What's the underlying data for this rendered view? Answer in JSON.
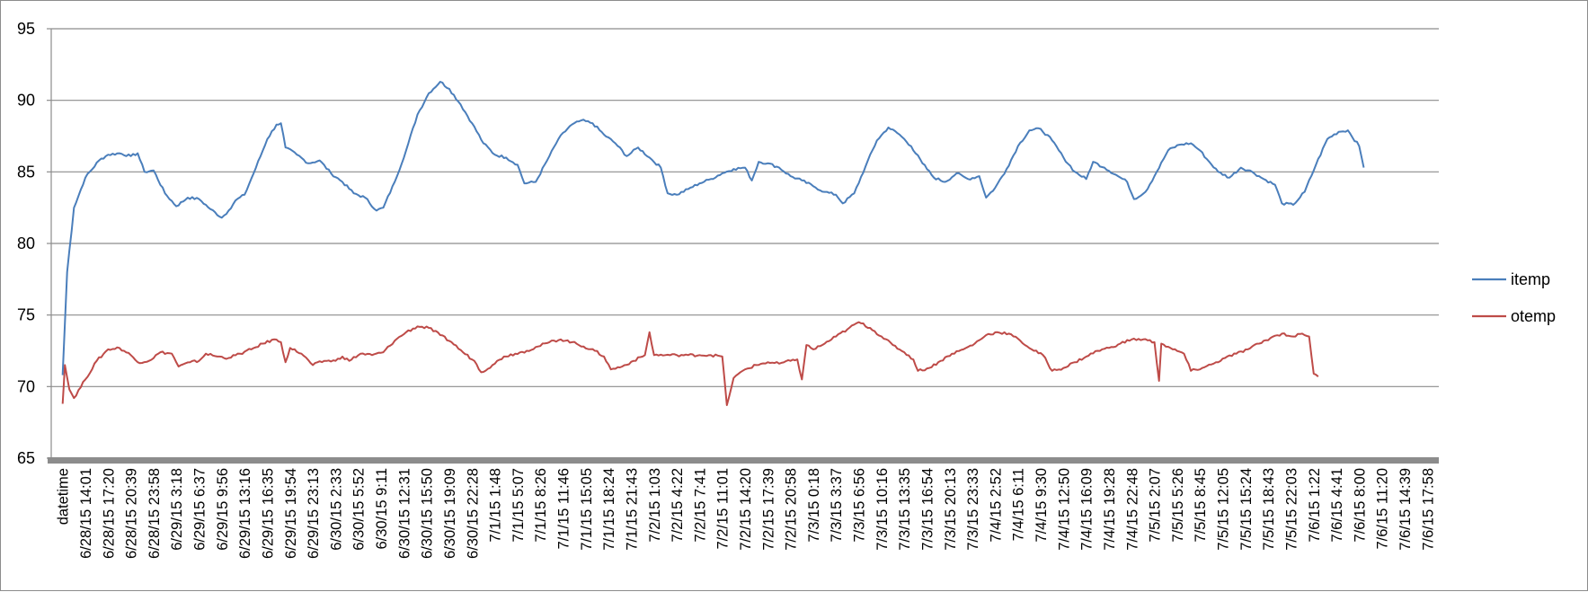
{
  "chart_data": {
    "type": "line",
    "title": "",
    "xlabel": "",
    "ylabel": "",
    "ylim": [
      65,
      95
    ],
    "yticks": [
      "95",
      "90",
      "85",
      "80",
      "75",
      "70",
      "65"
    ],
    "grid": true,
    "legend_position": "right",
    "x": [
      "datetime",
      "6/28/15 14:01",
      "6/28/15 17:20",
      "6/28/15 20:39",
      "6/28/15 23:58",
      "6/29/15 3:18",
      "6/29/15 6:37",
      "6/29/15 9:56",
      "6/29/15 13:16",
      "6/29/15 16:35",
      "6/29/15 19:54",
      "6/29/15 23:13",
      "6/30/15 2:33",
      "6/30/15 5:52",
      "6/30/15 9:11",
      "6/30/15 12:31",
      "6/30/15 15:50",
      "6/30/15 19:09",
      "6/30/15 22:28",
      "7/1/15 1:48",
      "7/1/15 5:07",
      "7/1/15 8:26",
      "7/1/15 11:46",
      "7/1/15 15:05",
      "7/1/15 18:24",
      "7/1/15 21:43",
      "7/2/15 1:03",
      "7/2/15 4:22",
      "7/2/15 7:41",
      "7/2/15 11:01",
      "7/2/15 14:20",
      "7/2/15 17:39",
      "7/2/15 20:58",
      "7/3/15 0:18",
      "7/3/15 3:37",
      "7/3/15 6:56",
      "7/3/15 10:16",
      "7/3/15 13:35",
      "7/3/15 16:54",
      "7/3/15 20:13",
      "7/3/15 23:33",
      "7/4/15 2:52",
      "7/4/15 6:11",
      "7/4/15 9:30",
      "7/4/15 12:50",
      "7/4/15 16:09",
      "7/4/15 19:28",
      "7/4/15 22:48",
      "7/5/15 2:07",
      "7/5/15 5:26",
      "7/5/15 8:45",
      "7/5/15 12:05",
      "7/5/15 15:24",
      "7/5/15 18:43",
      "7/5/15 22:03",
      "7/6/15 1:22",
      "7/6/15 4:41",
      "7/6/15 8:00",
      "7/6/15 11:20",
      "7/6/15 14:39",
      "7/6/15 17:58"
    ],
    "series": [
      {
        "name": "itemp",
        "color": "#4a7ebb",
        "values": [
          [
            0,
            70.8
          ],
          [
            0.2,
            78.0
          ],
          [
            0.5,
            82.5
          ],
          [
            1,
            84.6
          ],
          [
            1.6,
            85.8
          ],
          [
            2,
            86.2
          ],
          [
            2.5,
            86.3
          ],
          [
            3,
            86.1
          ],
          [
            3.3,
            86.3
          ],
          [
            3.6,
            85.0
          ],
          [
            4,
            85.1
          ],
          [
            4.5,
            83.5
          ],
          [
            5,
            82.6
          ],
          [
            5.5,
            83.2
          ],
          [
            6,
            83.1
          ],
          [
            6.5,
            82.4
          ],
          [
            7,
            81.8
          ],
          [
            7.3,
            82.3
          ],
          [
            7.6,
            83.0
          ],
          [
            8,
            83.4
          ],
          [
            8.5,
            85.3
          ],
          [
            9,
            87.3
          ],
          [
            9.4,
            88.3
          ],
          [
            9.6,
            88.4
          ],
          [
            9.8,
            86.7
          ],
          [
            10.3,
            86.2
          ],
          [
            10.8,
            85.6
          ],
          [
            11.3,
            85.8
          ],
          [
            11.8,
            84.9
          ],
          [
            12.3,
            84.3
          ],
          [
            12.8,
            83.5
          ],
          [
            13.3,
            83.2
          ],
          [
            13.8,
            82.3
          ],
          [
            14.1,
            82.5
          ],
          [
            14.6,
            84.3
          ],
          [
            15.1,
            86.5
          ],
          [
            15.6,
            89.0
          ],
          [
            16.1,
            90.5
          ],
          [
            16.6,
            91.3
          ],
          [
            17,
            90.8
          ],
          [
            17.5,
            89.7
          ],
          [
            18,
            88.4
          ],
          [
            18.5,
            87.0
          ],
          [
            19,
            86.2
          ],
          [
            19.5,
            86.0
          ],
          [
            20,
            85.5
          ],
          [
            20.3,
            84.2
          ],
          [
            20.8,
            84.3
          ],
          [
            21.3,
            85.8
          ],
          [
            21.8,
            87.3
          ],
          [
            22.3,
            88.2
          ],
          [
            22.8,
            88.6
          ],
          [
            23.3,
            88.4
          ],
          [
            23.8,
            87.6
          ],
          [
            24.3,
            87.0
          ],
          [
            24.8,
            86.1
          ],
          [
            25.3,
            86.7
          ],
          [
            25.8,
            86.0
          ],
          [
            26.3,
            85.3
          ],
          [
            26.6,
            83.5
          ],
          [
            27,
            83.4
          ],
          [
            27.5,
            83.8
          ],
          [
            28,
            84.2
          ],
          [
            28.5,
            84.5
          ],
          [
            29,
            84.9
          ],
          [
            29.5,
            85.2
          ],
          [
            30,
            85.3
          ],
          [
            30.3,
            84.4
          ],
          [
            30.6,
            85.7
          ],
          [
            31,
            85.6
          ],
          [
            31.5,
            85.3
          ],
          [
            32,
            84.7
          ],
          [
            32.5,
            84.4
          ],
          [
            33,
            84.0
          ],
          [
            33.5,
            83.6
          ],
          [
            34,
            83.4
          ],
          [
            34.3,
            82.8
          ],
          [
            34.8,
            83.5
          ],
          [
            35.3,
            85.4
          ],
          [
            35.8,
            87.2
          ],
          [
            36.3,
            88.1
          ],
          [
            36.8,
            87.6
          ],
          [
            37.3,
            86.8
          ],
          [
            37.8,
            85.6
          ],
          [
            38.3,
            84.6
          ],
          [
            38.8,
            84.3
          ],
          [
            39.3,
            84.9
          ],
          [
            39.8,
            84.5
          ],
          [
            40.3,
            84.7
          ],
          [
            40.6,
            83.2
          ],
          [
            41,
            83.9
          ],
          [
            41.5,
            85.2
          ],
          [
            42,
            86.8
          ],
          [
            42.5,
            87.9
          ],
          [
            43,
            88.0
          ],
          [
            43.5,
            87.2
          ],
          [
            44,
            86.0
          ],
          [
            44.5,
            85.0
          ],
          [
            45,
            84.5
          ],
          [
            45.3,
            85.7
          ],
          [
            45.8,
            85.3
          ],
          [
            46.3,
            84.8
          ],
          [
            46.8,
            84.3
          ],
          [
            47.1,
            83.1
          ],
          [
            47.6,
            83.6
          ],
          [
            48.1,
            85.0
          ],
          [
            48.6,
            86.5
          ],
          [
            49.1,
            86.9
          ],
          [
            49.6,
            87.0
          ],
          [
            50,
            86.5
          ],
          [
            50.3,
            85.9
          ],
          [
            50.8,
            85.0
          ],
          [
            51.3,
            84.6
          ],
          [
            51.8,
            85.3
          ],
          [
            52.3,
            85.0
          ],
          [
            52.8,
            84.5
          ],
          [
            53.3,
            84.1
          ],
          [
            53.6,
            82.8
          ],
          [
            54.1,
            82.7
          ],
          [
            54.6,
            83.6
          ],
          [
            55.1,
            85.5
          ],
          [
            55.6,
            87.3
          ],
          [
            56.1,
            87.8
          ],
          [
            56.5,
            87.9
          ],
          [
            57,
            86.8
          ],
          [
            57.2,
            85.3
          ]
        ]
      },
      {
        "name": "otemp",
        "color": "#be4b48",
        "values": [
          [
            0,
            68.8
          ],
          [
            0.1,
            71.5
          ],
          [
            0.3,
            69.8
          ],
          [
            0.5,
            69.2
          ],
          [
            1,
            70.5
          ],
          [
            1.5,
            71.8
          ],
          [
            2,
            72.6
          ],
          [
            2.5,
            72.7
          ],
          [
            3,
            72.2
          ],
          [
            3.3,
            71.7
          ],
          [
            3.8,
            71.8
          ],
          [
            4.3,
            72.4
          ],
          [
            4.8,
            72.3
          ],
          [
            5.1,
            71.4
          ],
          [
            5.6,
            71.7
          ],
          [
            6,
            71.8
          ],
          [
            6.3,
            72.3
          ],
          [
            6.8,
            72.1
          ],
          [
            7.3,
            72.0
          ],
          [
            7.8,
            72.3
          ],
          [
            8.3,
            72.6
          ],
          [
            8.8,
            73.0
          ],
          [
            9.3,
            73.3
          ],
          [
            9.6,
            73.1
          ],
          [
            9.8,
            71.7
          ],
          [
            10,
            72.7
          ],
          [
            10.5,
            72.3
          ],
          [
            11,
            71.5
          ],
          [
            11.5,
            71.8
          ],
          [
            12,
            71.8
          ],
          [
            12.3,
            72.1
          ],
          [
            12.6,
            71.8
          ],
          [
            13.1,
            72.3
          ],
          [
            13.6,
            72.2
          ],
          [
            14.1,
            72.4
          ],
          [
            14.6,
            73.2
          ],
          [
            15.1,
            73.8
          ],
          [
            15.6,
            74.2
          ],
          [
            16.1,
            74.1
          ],
          [
            16.6,
            73.6
          ],
          [
            17.1,
            73.1
          ],
          [
            17.6,
            72.4
          ],
          [
            18.1,
            71.8
          ],
          [
            18.4,
            71.0
          ],
          [
            18.9,
            71.5
          ],
          [
            19.4,
            72.1
          ],
          [
            19.9,
            72.3
          ],
          [
            20.4,
            72.5
          ],
          [
            20.9,
            72.8
          ],
          [
            21.4,
            73.1
          ],
          [
            21.9,
            73.3
          ],
          [
            22.4,
            73.1
          ],
          [
            22.9,
            72.8
          ],
          [
            23.4,
            72.5
          ],
          [
            23.8,
            72.1
          ],
          [
            24.1,
            71.2
          ],
          [
            24.6,
            71.4
          ],
          [
            25.1,
            71.8
          ],
          [
            25.6,
            72.2
          ],
          [
            25.8,
            73.8
          ],
          [
            26,
            72.2
          ],
          [
            26.5,
            72.2
          ],
          [
            27,
            72.2
          ],
          [
            27.5,
            72.2
          ],
          [
            28,
            72.2
          ],
          [
            28.5,
            72.2
          ],
          [
            29,
            72.1
          ],
          [
            29.2,
            68.7
          ],
          [
            29.5,
            70.6
          ],
          [
            30,
            71.2
          ],
          [
            30.5,
            71.5
          ],
          [
            31,
            71.7
          ],
          [
            31.5,
            71.6
          ],
          [
            32,
            71.8
          ],
          [
            32.3,
            71.9
          ],
          [
            32.5,
            70.5
          ],
          [
            32.7,
            72.9
          ],
          [
            33,
            72.6
          ],
          [
            33.5,
            73.0
          ],
          [
            34,
            73.5
          ],
          [
            34.5,
            74.0
          ],
          [
            35,
            74.5
          ],
          [
            35.5,
            74.1
          ],
          [
            36,
            73.5
          ],
          [
            36.5,
            72.9
          ],
          [
            37,
            72.4
          ],
          [
            37.4,
            71.9
          ],
          [
            37.6,
            71.1
          ],
          [
            38.1,
            71.3
          ],
          [
            38.6,
            71.8
          ],
          [
            39.1,
            72.3
          ],
          [
            39.6,
            72.6
          ],
          [
            40.1,
            73.0
          ],
          [
            40.6,
            73.6
          ],
          [
            41.1,
            73.8
          ],
          [
            41.6,
            73.7
          ],
          [
            42.1,
            73.2
          ],
          [
            42.6,
            72.6
          ],
          [
            43.1,
            72.2
          ],
          [
            43.5,
            71.1
          ],
          [
            44,
            71.3
          ],
          [
            44.5,
            71.7
          ],
          [
            45,
            72.1
          ],
          [
            45.5,
            72.5
          ],
          [
            46,
            72.7
          ],
          [
            46.5,
            73.0
          ],
          [
            47,
            73.3
          ],
          [
            47.5,
            73.3
          ],
          [
            48,
            73.1
          ],
          [
            48.2,
            70.4
          ],
          [
            48.3,
            73.0
          ],
          [
            48.8,
            72.6
          ],
          [
            49.3,
            72.3
          ],
          [
            49.6,
            71.1
          ],
          [
            50.1,
            71.3
          ],
          [
            50.6,
            71.6
          ],
          [
            51.1,
            72.0
          ],
          [
            51.6,
            72.3
          ],
          [
            52.1,
            72.6
          ],
          [
            52.6,
            73.0
          ],
          [
            53.1,
            73.4
          ],
          [
            53.6,
            73.7
          ],
          [
            54.1,
            73.5
          ],
          [
            54.5,
            73.7
          ],
          [
            54.8,
            73.5
          ],
          [
            55,
            70.9
          ],
          [
            55.2,
            70.7
          ]
        ]
      }
    ]
  }
}
